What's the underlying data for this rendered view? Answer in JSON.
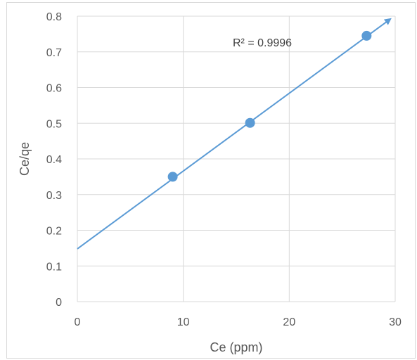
{
  "chart_data": {
    "type": "scatter",
    "xlabel": "Ce (ppm)",
    "ylabel": "Ce/qe",
    "xlim": [
      0,
      30
    ],
    "ylim": [
      0,
      0.8
    ],
    "x_ticks": [
      "0",
      "10",
      "20",
      "30"
    ],
    "y_ticks": [
      "0",
      "0.1",
      "0.2",
      "0.3",
      "0.4",
      "0.5",
      "0.6",
      "0.7",
      "0.8"
    ],
    "grid": true,
    "legend": "none",
    "series": [
      {
        "points": [
          {
            "x": 9.0,
            "y": 0.35
          },
          {
            "x": 16.3,
            "y": 0.501
          },
          {
            "x": 27.3,
            "y": 0.745
          }
        ],
        "color": "#5b9bd5"
      }
    ],
    "trendline": {
      "type": "linear",
      "slope": 0.0218,
      "intercept": 0.148,
      "x_range": [
        0,
        29.5
      ],
      "color": "#5b9bd5"
    },
    "annotations": [
      {
        "text": "R² = 0.9996"
      }
    ]
  }
}
